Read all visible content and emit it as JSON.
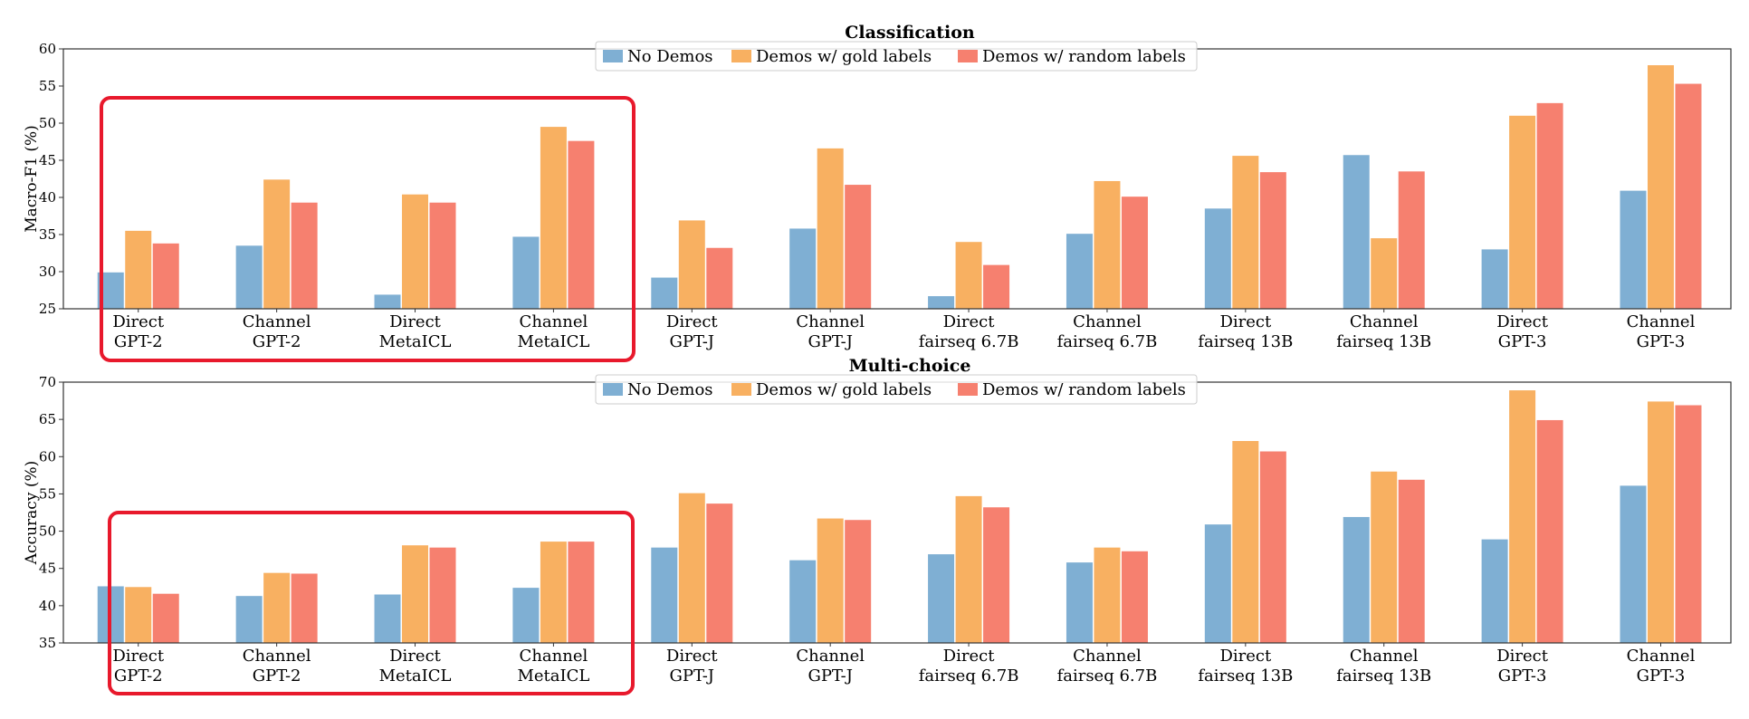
{
  "chart_data": [
    {
      "type": "bar",
      "title": "Classification",
      "ylabel": "Macro-F1 (%)",
      "ylim": [
        25,
        60
      ],
      "yticks": [
        25,
        30,
        35,
        40,
        45,
        50,
        55,
        60
      ],
      "categories": [
        [
          "Direct",
          "GPT-2"
        ],
        [
          "Channel",
          "GPT-2"
        ],
        [
          "Direct",
          "MetaICL"
        ],
        [
          "Channel",
          "MetaICL"
        ],
        [
          "Direct",
          "GPT-J"
        ],
        [
          "Channel",
          "GPT-J"
        ],
        [
          "Direct",
          "fairseq 6.7B"
        ],
        [
          "Channel",
          "fairseq 6.7B"
        ],
        [
          "Direct",
          "fairseq 13B"
        ],
        [
          "Channel",
          "fairseq 13B"
        ],
        [
          "Direct",
          "GPT-3"
        ],
        [
          "Channel",
          "GPT-3"
        ]
      ],
      "series": [
        {
          "name": "No Demos",
          "color": "#7fafd3",
          "values": [
            29.9,
            33.5,
            26.9,
            34.7,
            29.2,
            35.8,
            26.7,
            35.1,
            38.5,
            45.7,
            33.0,
            40.9
          ]
        },
        {
          "name": "Demos w/ gold labels",
          "color": "#f8b061",
          "values": [
            35.5,
            42.4,
            40.4,
            49.5,
            36.9,
            46.6,
            34.0,
            42.2,
            45.6,
            34.5,
            51.0,
            57.8
          ]
        },
        {
          "name": "Demos w/ random labels",
          "color": "#f6806f",
          "values": [
            33.8,
            39.3,
            39.3,
            47.6,
            33.2,
            41.7,
            30.9,
            40.1,
            43.4,
            43.5,
            52.7,
            55.3
          ]
        }
      ],
      "highlight": {
        "from": 0,
        "to": 3,
        "color": "#e8192c"
      }
    },
    {
      "type": "bar",
      "title": "Multi-choice",
      "ylabel": "Accuracy (%)",
      "ylim": [
        35,
        70
      ],
      "yticks": [
        35,
        40,
        45,
        50,
        55,
        60,
        65,
        70
      ],
      "categories": [
        [
          "Direct",
          "GPT-2"
        ],
        [
          "Channel",
          "GPT-2"
        ],
        [
          "Direct",
          "MetaICL"
        ],
        [
          "Channel",
          "MetaICL"
        ],
        [
          "Direct",
          "GPT-J"
        ],
        [
          "Channel",
          "GPT-J"
        ],
        [
          "Direct",
          "fairseq 6.7B"
        ],
        [
          "Channel",
          "fairseq 6.7B"
        ],
        [
          "Direct",
          "fairseq 13B"
        ],
        [
          "Channel",
          "fairseq 13B"
        ],
        [
          "Direct",
          "GPT-3"
        ],
        [
          "Channel",
          "GPT-3"
        ]
      ],
      "series": [
        {
          "name": "No Demos",
          "color": "#7fafd3",
          "values": [
            42.6,
            41.3,
            41.5,
            42.4,
            47.8,
            46.1,
            46.9,
            45.8,
            50.9,
            51.9,
            48.9,
            56.1
          ]
        },
        {
          "name": "Demos w/ gold labels",
          "color": "#f8b061",
          "values": [
            42.5,
            44.4,
            48.1,
            48.6,
            55.1,
            51.7,
            54.7,
            47.8,
            62.1,
            58.0,
            68.9,
            67.4
          ]
        },
        {
          "name": "Demos w/ random labels",
          "color": "#f6806f",
          "values": [
            41.6,
            44.3,
            47.8,
            48.6,
            53.7,
            51.5,
            53.2,
            47.3,
            60.7,
            56.9,
            64.9,
            66.9
          ]
        }
      ],
      "highlight": {
        "from": 0,
        "to": 3,
        "color": "#e8192c"
      }
    }
  ]
}
